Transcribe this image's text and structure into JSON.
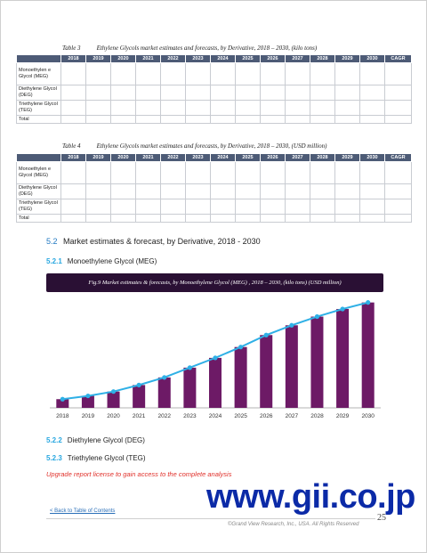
{
  "table3": {
    "label": "Table 3",
    "title": "Ethylene Glycols market estimates and forecasts, by Derivative, 2018 – 2030, (kilo tons)",
    "columns": [
      "2018",
      "2019",
      "2020",
      "2021",
      "2022",
      "2023",
      "2024",
      "2025",
      "2026",
      "2027",
      "2028",
      "2029",
      "2030",
      "CAGR"
    ],
    "rows": [
      "Monoethylen e Glycol (MEG)",
      "Diethylene Glycol (DEG)",
      "Triethylene Glycol (TEG)",
      "Total"
    ]
  },
  "table4": {
    "label": "Table 4",
    "title": "Ethylene Glycols market estimates and forecasts, by Derivative, 2018 – 2030, (USD million)",
    "columns": [
      "2018",
      "2019",
      "2020",
      "2021",
      "2022",
      "2023",
      "2024",
      "2025",
      "2026",
      "2027",
      "2028",
      "2029",
      "2030",
      "CAGR"
    ],
    "rows": [
      "Monoethylen e Glycol (MEG)",
      "Diethylene Glycol (DEG)",
      "Triethylene Glycol (TEG)",
      "Total"
    ]
  },
  "section": {
    "number": "5.2",
    "title": "Market estimates & forecast, by Derivative, 2018 - 2030"
  },
  "sub1": {
    "number": "5.2.1",
    "title": "Monoethylene Glycol (MEG)"
  },
  "sub2": {
    "number": "5.2.2",
    "title": "Diethylene Glycol (DEG)"
  },
  "sub3": {
    "number": "5.2.3",
    "title": "Triethylene Glycol (TEG)"
  },
  "figure_title": "Fig.9  Market estimates & forecasts,  by  Monoethylene Glycol (MEG) ,  2018 – 2030, (kilo tons) (USD million)",
  "chart_data": {
    "type": "bar",
    "categories": [
      "2018",
      "2019",
      "2020",
      "2021",
      "2022",
      "2023",
      "2024",
      "2025",
      "2026",
      "2027",
      "2028",
      "2029",
      "2030"
    ],
    "series": [
      {
        "type": "bar",
        "values": [
          8,
          11,
          15,
          21,
          28,
          37,
          46,
          56,
          67,
          76,
          84,
          91,
          97
        ],
        "color": "#6d1a66"
      },
      {
        "type": "line",
        "values": [
          8,
          11,
          15,
          21,
          28,
          37,
          46,
          56,
          67,
          76,
          84,
          91,
          97
        ],
        "color": "#2fb0e6"
      }
    ],
    "ylim": [
      0,
      100
    ],
    "grid": false,
    "title": "",
    "xlabel": "",
    "ylabel": ""
  },
  "upgrade_text": "Upgrade report license to gain access to the complete analysis",
  "watermark": "www.gii.co.jp",
  "back_link": "< Back to Table of Contents",
  "page_number": "25",
  "copyright": "©Grand View Research, Inc., USA. All Rights Reserved",
  "colors": {
    "header": "#4d5b76",
    "bar": "#6d1a66",
    "line": "#2fb0e6",
    "banner": "#2a1034",
    "watermark": "#0b2aa7",
    "alert": "#e0302a"
  }
}
